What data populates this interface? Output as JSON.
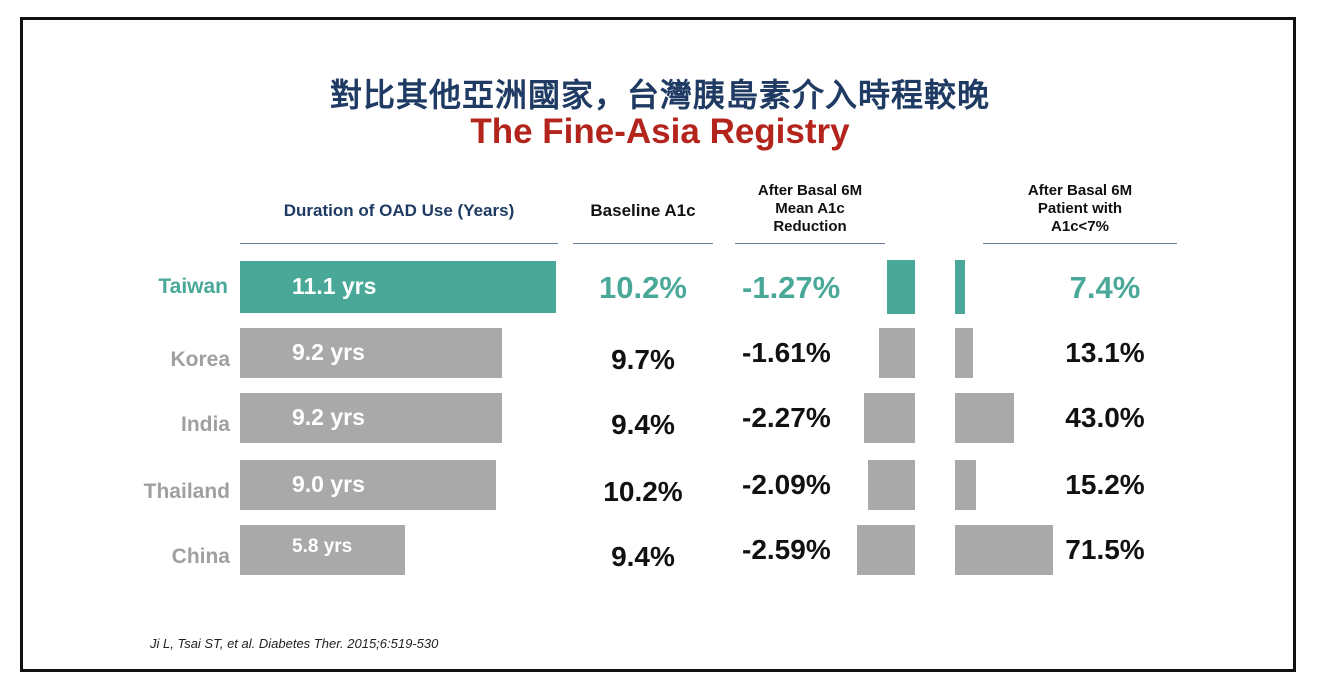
{
  "title_zh": "對比其他亞洲國家，台灣胰島素介入時程較晚",
  "title_en": "The Fine-Asia Registry",
  "columns": {
    "duration": "Duration of OAD Use (Years)",
    "baseline": "Baseline A1c",
    "reduction": [
      "After Basal 6M",
      "Mean A1c",
      "Reduction"
    ],
    "patients": [
      "After Basal 6M",
      "Patient with",
      "A1c<7%"
    ]
  },
  "citation": "Ji L, Tsai ST, et al. Diabetes Ther. 2015;6:519-530",
  "colors": {
    "highlight": "#4aa898",
    "bar": "#a9a9a9",
    "title_zh": "#1f3b63",
    "title_en": "#b3251c"
  },
  "chart_data": {
    "type": "table",
    "title": "The Fine-Asia Registry",
    "categories": [
      "Taiwan",
      "Korea",
      "India",
      "Thailand",
      "China"
    ],
    "highlight_category": "Taiwan",
    "series": [
      {
        "name": "Duration of OAD Use (Years)",
        "values": [
          11.1,
          9.2,
          9.2,
          9.0,
          5.8
        ],
        "labels": [
          "11.1 yrs",
          "9.2 yrs",
          "9.2 yrs",
          "9.0 yrs",
          "5.8 yrs"
        ]
      },
      {
        "name": "Baseline A1c",
        "values": [
          10.2,
          9.7,
          9.4,
          10.2,
          9.4
        ],
        "labels": [
          "10.2%",
          "9.7%",
          "9.4%",
          "10.2%",
          "9.4%"
        ]
      },
      {
        "name": "After Basal 6M Mean A1c Reduction",
        "values": [
          -1.27,
          -1.61,
          -2.27,
          -2.09,
          -2.59
        ],
        "labels": [
          "-1.27%",
          "-1.61%",
          "-2.27%",
          "-2.09%",
          "-2.59%"
        ]
      },
      {
        "name": "After Basal 6M Patient with A1c<7%",
        "values": [
          7.4,
          13.1,
          43.0,
          15.2,
          71.5
        ],
        "labels": [
          "7.4%",
          "13.1%",
          "43.0%",
          "15.2%",
          "71.5%"
        ]
      }
    ]
  }
}
